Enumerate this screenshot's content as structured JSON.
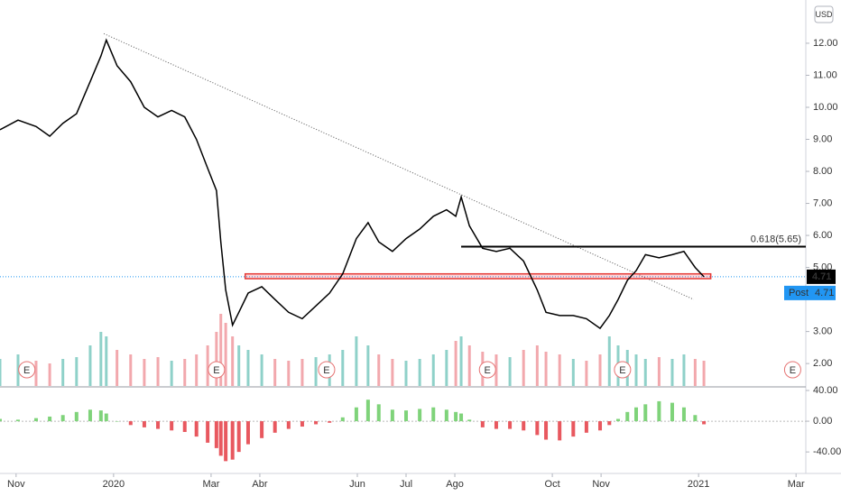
{
  "header": {
    "currency": "USD"
  },
  "chart_data": {
    "type": "line",
    "x": [
      -0.33,
      0.04,
      0.41,
      0.69,
      0.96,
      1.24,
      1.52,
      1.74,
      1.85,
      2.07,
      2.35,
      2.63,
      2.91,
      3.19,
      3.46,
      3.7,
      3.93,
      4.11,
      4.2,
      4.3,
      4.44,
      4.57,
      4.76,
      5.04,
      5.31,
      5.59,
      5.87,
      6.15,
      6.43,
      6.7,
      6.98,
      7.22,
      7.44,
      7.72,
      8.0,
      8.28,
      8.56,
      8.83,
      9.02,
      9.13,
      9.3,
      9.57,
      9.85,
      10.13,
      10.41,
      10.69,
      10.87,
      11.15,
      11.43,
      11.7,
      11.98,
      12.17,
      12.35,
      12.54,
      12.72,
      12.91,
      13.19,
      13.46,
      13.7,
      13.93,
      14.11
    ],
    "values": [
      9.3,
      9.6,
      9.4,
      9.1,
      9.5,
      9.8,
      10.8,
      11.6,
      12.1,
      11.3,
      10.8,
      10.0,
      9.7,
      9.9,
      9.7,
      9.0,
      8.1,
      7.4,
      5.8,
      4.3,
      3.2,
      3.6,
      4.2,
      4.4,
      4.0,
      3.6,
      3.4,
      3.8,
      4.2,
      4.8,
      5.9,
      6.4,
      5.8,
      5.5,
      5.9,
      6.2,
      6.6,
      6.8,
      6.6,
      7.2,
      6.3,
      5.6,
      5.5,
      5.6,
      5.2,
      4.3,
      3.6,
      3.5,
      3.5,
      3.4,
      3.1,
      3.5,
      4.0,
      4.6,
      4.9,
      5.4,
      5.3,
      5.4,
      5.5,
      5.0,
      4.71
    ],
    "color": "#000000",
    "volume": [
      30,
      35,
      28,
      25,
      30,
      32,
      45,
      60,
      55,
      40,
      35,
      30,
      32,
      28,
      30,
      35,
      45,
      60,
      80,
      70,
      55,
      45,
      40,
      35,
      30,
      28,
      30,
      32,
      35,
      40,
      55,
      45,
      35,
      30,
      28,
      30,
      35,
      40,
      50,
      55,
      45,
      38,
      35,
      32,
      40,
      45,
      38,
      35,
      30,
      28,
      35,
      55,
      45,
      40,
      35,
      30,
      32,
      30,
      35,
      30,
      28
    ],
    "oscillator": [
      3,
      2,
      4,
      6,
      8,
      12,
      15,
      14,
      10,
      0,
      -5,
      -8,
      -10,
      -12,
      -14,
      -20,
      -28,
      -35,
      -45,
      -52,
      -50,
      -40,
      -30,
      -22,
      -15,
      -10,
      -7,
      -4,
      -2,
      5,
      18,
      28,
      22,
      15,
      14,
      16,
      18,
      15,
      12,
      10,
      2,
      -8,
      -10,
      -10,
      -12,
      -18,
      -24,
      -25,
      -20,
      -15,
      -12,
      -5,
      3,
      12,
      18,
      22,
      26,
      24,
      18,
      8,
      -4
    ],
    "xlim": [
      -0.33,
      16.2
    ],
    "xticks": [
      {
        "value": 0,
        "label": "Nov"
      },
      {
        "value": 2,
        "label": "2020"
      },
      {
        "value": 4,
        "label": "Mar"
      },
      {
        "value": 5,
        "label": "Abr"
      },
      {
        "value": 7,
        "label": "Jun"
      },
      {
        "value": 8,
        "label": "Jul"
      },
      {
        "value": 9,
        "label": "Ago"
      },
      {
        "value": 11,
        "label": "Oct"
      },
      {
        "value": 12,
        "label": "Nov"
      },
      {
        "value": 14,
        "label": "2021"
      },
      {
        "value": 16,
        "label": "Mar"
      }
    ],
    "ylim": [
      1.3,
      13.35
    ],
    "yticks": [
      {
        "value": 2,
        "label": "2.00"
      },
      {
        "value": 3,
        "label": "3.00"
      },
      {
        "value": 5,
        "label": "5.00"
      },
      {
        "value": 6,
        "label": "6.00"
      },
      {
        "value": 7,
        "label": "7.00"
      },
      {
        "value": 8,
        "label": "8.00"
      },
      {
        "value": 9,
        "label": "9.00"
      },
      {
        "value": 10,
        "label": "10.00"
      },
      {
        "value": 11,
        "label": "11.00"
      },
      {
        "value": 12,
        "label": "12.00"
      }
    ],
    "y2lim": [
      -68,
      43.5
    ],
    "y2ticks": [
      {
        "value": 40,
        "label": "40.00"
      },
      {
        "value": 0,
        "label": "0.00"
      },
      {
        "value": -40,
        "label": "-40.00"
      }
    ],
    "annotations": {
      "fib_label": "0.618(5.65)",
      "fib_level": 5.65,
      "fib_x_start": 9.13,
      "trendline": [
        [
          1.8,
          12.3
        ],
        [
          13.9,
          4.0
        ]
      ],
      "zone": [
        4.65,
        4.8
      ],
      "zone_x": [
        4.7,
        14.25
      ],
      "last_price": 4.71,
      "post_label": "Post",
      "post_price": 4.71,
      "events": [
        "E",
        "E",
        "E",
        "E",
        "E",
        "E"
      ],
      "event_x": [
        0.22,
        4.11,
        6.37,
        9.67,
        12.44,
        15.93
      ]
    }
  }
}
